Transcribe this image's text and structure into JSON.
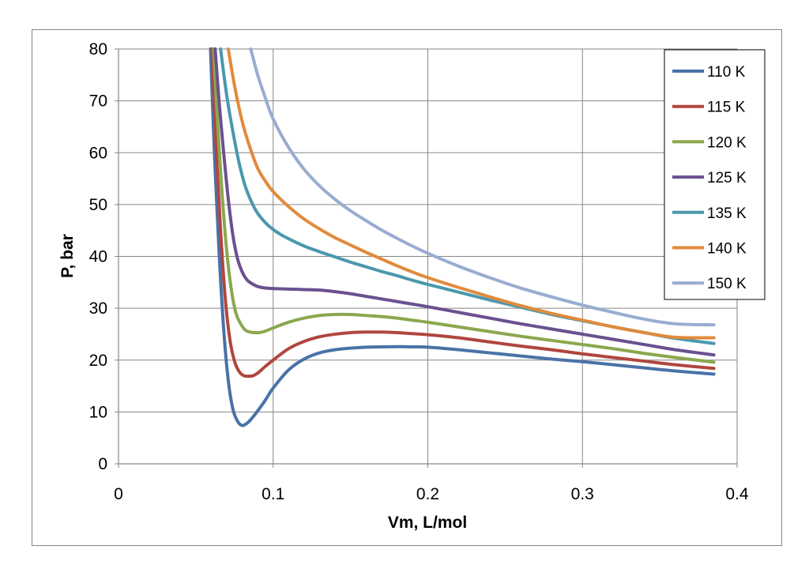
{
  "chart_data": {
    "type": "line",
    "title": "",
    "xlabel": "Vm, L/mol",
    "ylabel": "P, bar",
    "xlim": [
      0,
      0.4
    ],
    "ylim": [
      0,
      80
    ],
    "xticks": [
      0,
      0.1,
      0.2,
      0.3,
      0.4
    ],
    "xtick_labels": [
      "0",
      "0.1",
      "0.2",
      "0.3",
      "0.4"
    ],
    "yticks": [
      0,
      10,
      20,
      30,
      40,
      50,
      60,
      70,
      80
    ],
    "ytick_labels": [
      "0",
      "10",
      "20",
      "30",
      "40",
      "50",
      "60",
      "70",
      "80"
    ],
    "grid": true,
    "legend_position": "top-right",
    "series": [
      {
        "name": "110 K",
        "color": "#4a72a8",
        "x": [
          0.0595,
          0.062,
          0.065,
          0.068,
          0.071,
          0.074,
          0.077,
          0.08,
          0.083,
          0.086,
          0.09,
          0.095,
          0.1,
          0.11,
          0.12,
          0.13,
          0.14,
          0.15,
          0.16,
          0.17,
          0.18,
          0.19,
          0.2,
          0.22,
          0.24,
          0.26,
          0.28,
          0.3,
          0.32,
          0.34,
          0.36,
          0.385
        ],
        "y": [
          80,
          60,
          41,
          26,
          16,
          10.5,
          8.2,
          7.4,
          7.8,
          8.7,
          10.2,
          12.3,
          14.6,
          18.1,
          20.2,
          21.4,
          22.0,
          22.3,
          22.5,
          22.55,
          22.6,
          22.55,
          22.5,
          22.0,
          21.4,
          20.8,
          20.2,
          19.7,
          19.1,
          18.5,
          17.9,
          17.3
        ]
      },
      {
        "name": "115 K",
        "color": "#b0463f",
        "x": [
          0.0605,
          0.063,
          0.066,
          0.069,
          0.072,
          0.075,
          0.078,
          0.081,
          0.084,
          0.087,
          0.09,
          0.095,
          0.1,
          0.11,
          0.12,
          0.13,
          0.14,
          0.15,
          0.16,
          0.17,
          0.18,
          0.19,
          0.2,
          0.22,
          0.24,
          0.26,
          0.28,
          0.3,
          0.32,
          0.34,
          0.36,
          0.385
        ],
        "y": [
          80,
          62,
          45,
          32,
          24,
          19.8,
          17.8,
          17.0,
          16.9,
          17.0,
          17.5,
          18.8,
          20.0,
          22.2,
          23.6,
          24.5,
          25.0,
          25.3,
          25.4,
          25.4,
          25.3,
          25.1,
          24.9,
          24.3,
          23.5,
          22.7,
          22.0,
          21.2,
          20.5,
          19.8,
          19.1,
          18.4
        ]
      },
      {
        "name": "120 K",
        "color": "#8aa84e",
        "x": [
          0.0615,
          0.064,
          0.067,
          0.07,
          0.073,
          0.076,
          0.079,
          0.082,
          0.085,
          0.088,
          0.091,
          0.095,
          0.1,
          0.11,
          0.12,
          0.13,
          0.14,
          0.15,
          0.16,
          0.17,
          0.18,
          0.19,
          0.2,
          0.22,
          0.24,
          0.26,
          0.28,
          0.3,
          0.32,
          0.34,
          0.36,
          0.385
        ],
        "y": [
          80,
          66,
          52,
          41,
          33.5,
          29,
          27,
          25.8,
          25.4,
          25.3,
          25.3,
          25.6,
          26.2,
          27.3,
          28.1,
          28.6,
          28.8,
          28.8,
          28.6,
          28.4,
          28.1,
          27.7,
          27.3,
          26.4,
          25.5,
          24.6,
          23.8,
          23.0,
          22.2,
          21.3,
          20.5,
          19.6
        ]
      },
      {
        "name": "125 K",
        "color": "#6b5090",
        "x": [
          0.0625,
          0.065,
          0.068,
          0.071,
          0.074,
          0.077,
          0.08,
          0.083,
          0.086,
          0.09,
          0.095,
          0.1,
          0.11,
          0.12,
          0.13,
          0.14,
          0.15,
          0.16,
          0.17,
          0.18,
          0.19,
          0.2,
          0.22,
          0.24,
          0.26,
          0.28,
          0.3,
          0.32,
          0.34,
          0.36,
          0.385
        ],
        "y": [
          80,
          70,
          60,
          51,
          44,
          39.5,
          37,
          35.5,
          34.8,
          34.2,
          33.9,
          33.8,
          33.7,
          33.6,
          33.5,
          33.2,
          32.8,
          32.3,
          31.8,
          31.3,
          30.8,
          30.3,
          29.2,
          28.1,
          27.0,
          26.0,
          25.0,
          24.0,
          23.0,
          22.0,
          21.0
        ]
      },
      {
        "name": "135 K",
        "color": "#4a98ad",
        "x": [
          0.066,
          0.07,
          0.074,
          0.078,
          0.082,
          0.086,
          0.09,
          0.095,
          0.1,
          0.105,
          0.11,
          0.12,
          0.13,
          0.14,
          0.15,
          0.16,
          0.17,
          0.18,
          0.19,
          0.2,
          0.22,
          0.24,
          0.26,
          0.28,
          0.3,
          0.32,
          0.34,
          0.36,
          0.385
        ],
        "y": [
          80,
          71,
          64,
          58,
          53.5,
          50.5,
          48.3,
          46.5,
          45.2,
          44.2,
          43.4,
          42.0,
          40.9,
          39.9,
          38.9,
          38.0,
          37.1,
          36.3,
          35.4,
          34.6,
          33.1,
          31.6,
          30.2,
          28.8,
          27.6,
          26.4,
          25.3,
          24.2,
          23.2
        ]
      },
      {
        "name": "140 K",
        "color": "#e08b3c",
        "x": [
          0.071,
          0.075,
          0.08,
          0.085,
          0.09,
          0.095,
          0.1,
          0.11,
          0.12,
          0.13,
          0.14,
          0.15,
          0.16,
          0.17,
          0.18,
          0.19,
          0.2,
          0.22,
          0.24,
          0.26,
          0.28,
          0.3,
          0.32,
          0.34,
          0.36,
          0.385
        ],
        "y": [
          80,
          73,
          66,
          61,
          57,
          54.5,
          52.5,
          49.6,
          47.2,
          45.3,
          43.6,
          42.2,
          40.8,
          39.5,
          38.2,
          37.0,
          35.9,
          34.0,
          32.2,
          30.5,
          29.0,
          27.7,
          26.4,
          25.3,
          24.4,
          24.3
        ]
      },
      {
        "name": "150 K",
        "color": "#98acd2",
        "x": [
          0.0855,
          0.09,
          0.095,
          0.1,
          0.11,
          0.12,
          0.13,
          0.14,
          0.15,
          0.16,
          0.17,
          0.18,
          0.19,
          0.2,
          0.22,
          0.24,
          0.26,
          0.28,
          0.3,
          0.32,
          0.34,
          0.36,
          0.385
        ],
        "y": [
          80,
          75,
          70.5,
          66.5,
          61,
          56.8,
          53.6,
          51.0,
          48.8,
          46.9,
          45.1,
          43.5,
          42.0,
          40.6,
          38.1,
          35.9,
          33.9,
          32.2,
          30.6,
          29.2,
          27.9,
          27.0,
          26.8
        ]
      }
    ]
  }
}
